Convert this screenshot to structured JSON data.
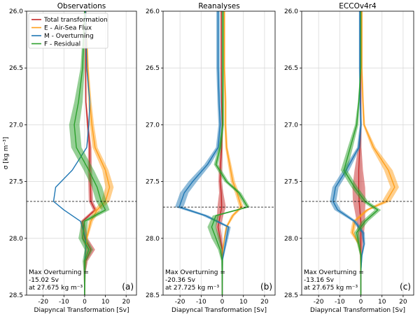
{
  "chart_data": {
    "type": "line",
    "xlabel": "Diapyncal Transformation [Sv]",
    "ylabel": "σ [kg m⁻³]",
    "xlim": [
      -28,
      25
    ],
    "ylim": [
      28.5,
      26.0
    ],
    "xticks": [
      -20,
      -10,
      0,
      10,
      20
    ],
    "yticks": [
      26.0,
      26.5,
      27.0,
      27.5,
      28.0,
      28.5
    ],
    "grid": true,
    "legend_position": "top-left (first panel)",
    "legend": [
      {
        "name": "Total transformation",
        "color": "#c62828"
      },
      {
        "name": "E - Air-Sea Flux",
        "color": "#ff9f1a"
      },
      {
        "name": "M - Overturning",
        "color": "#1f77b4"
      },
      {
        "name": "F - Residual",
        "color": "#2ca02c"
      }
    ],
    "panels": [
      {
        "title": "Observations",
        "letter": "(a)",
        "dashed_sigma": 27.675,
        "annotation": [
          "Max Overturning =",
          "-15.02 Sv",
          "at 27.675 kg m⁻³"
        ],
        "sigma": [
          26.0,
          26.5,
          26.8,
          27.0,
          27.2,
          27.4,
          27.55,
          27.675,
          27.75,
          27.85,
          28.0,
          28.1,
          28.2,
          28.3,
          28.5
        ],
        "series": [
          {
            "name": "Total transformation",
            "color": "#c62828",
            "values": [
              0.5,
              0.5,
              0.6,
              1.5,
              2.5,
              2.5,
              2.8,
              3.0,
              5.0,
              -1.0,
              0.0,
              3.0,
              0.5,
              0.0,
              0.0
            ],
            "band": [
              0.3,
              0.3,
              0.3,
              0.5,
              0.8,
              1.0,
              1.0,
              1.0,
              1.0,
              1.0,
              1.5,
              2.0,
              1.0,
              0.5,
              0.2
            ]
          },
          {
            "name": "E - Air-Sea Flux",
            "color": "#ff9f1a",
            "values": [
              0.5,
              1.5,
              2.5,
              3.5,
              5.0,
              10.0,
              12.0,
              10.0,
              6.0,
              3.0,
              1.0,
              0.5,
              0.2,
              0.0,
              0.0
            ],
            "band": [
              0.3,
              0.5,
              0.8,
              1.0,
              1.2,
              1.5,
              2.0,
              2.0,
              1.5,
              1.0,
              0.5,
              0.4,
              0.3,
              0.2,
              0.1
            ]
          },
          {
            "name": "M - Overturning",
            "color": "#1f77b4",
            "values": [
              0.5,
              1.0,
              2.5,
              2.0,
              1.0,
              -6.0,
              -14.0,
              -15.0,
              -10.0,
              -2.0,
              0.5,
              0.5,
              0.0,
              0.0,
              0.0
            ],
            "band": [
              0.0,
              0.0,
              0.0,
              0.0,
              0.0,
              0.0,
              0.0,
              0.0,
              0.0,
              0.0,
              0.0,
              0.0,
              0.0,
              0.0,
              0.0
            ]
          },
          {
            "name": "F - Residual",
            "color": "#2ca02c",
            "values": [
              0.0,
              -1.0,
              -3.0,
              -5.0,
              -4.0,
              2.0,
              6.0,
              8.0,
              10.0,
              0.0,
              -1.0,
              2.0,
              0.0,
              0.0,
              0.0
            ],
            "band": [
              0.3,
              1.0,
              2.0,
              2.5,
              2.5,
              2.5,
              2.5,
              2.5,
              2.0,
              1.5,
              2.0,
              2.0,
              1.0,
              0.5,
              0.2
            ]
          }
        ]
      },
      {
        "title": "Reanalyses",
        "letter": "(b)",
        "dashed_sigma": 27.725,
        "annotation": [
          "Max Overturning =",
          "-20.36 Sv",
          "at 27.725 kg m⁻³"
        ],
        "sigma": [
          26.0,
          26.5,
          26.8,
          27.0,
          27.2,
          27.35,
          27.5,
          27.6,
          27.725,
          27.8,
          27.9,
          28.0,
          28.1,
          28.2,
          28.5
        ],
        "series": [
          {
            "name": "Total transformation",
            "color": "#c62828",
            "values": [
              -0.5,
              -0.5,
              -0.3,
              0.0,
              -0.3,
              -0.8,
              -1.0,
              -0.5,
              -0.3,
              -1.0,
              -2.0,
              -1.0,
              0.0,
              0.0,
              0.0
            ],
            "band": [
              0.3,
              0.3,
              0.3,
              0.3,
              0.5,
              0.8,
              0.8,
              1.0,
              2.0,
              1.5,
              1.2,
              1.0,
              0.5,
              0.3,
              0.1
            ]
          },
          {
            "name": "E - Air-Sea Flux",
            "color": "#ff9f1a",
            "values": [
              1.0,
              1.0,
              1.5,
              1.5,
              2.0,
              3.5,
              5.0,
              7.0,
              9.0,
              5.0,
              2.0,
              1.0,
              0.3,
              0.0,
              0.0
            ],
            "band": [
              0.4,
              0.4,
              0.5,
              0.5,
              0.6,
              0.8,
              1.0,
              1.0,
              1.0,
              0.8,
              0.5,
              0.3,
              0.2,
              0.1,
              0.1
            ]
          },
          {
            "name": "M - Overturning",
            "color": "#1f77b4",
            "values": [
              -2.0,
              -2.0,
              -1.5,
              -1.0,
              -2.0,
              -7.0,
              -14.0,
              -18.0,
              -20.36,
              -8.0,
              3.0,
              2.0,
              1.0,
              0.0,
              0.0
            ],
            "band": [
              0.8,
              0.8,
              0.8,
              0.8,
              1.0,
              1.5,
              2.0,
              2.0,
              2.0,
              1.5,
              1.0,
              0.8,
              0.5,
              0.3,
              0.1
            ]
          },
          {
            "name": "F - Residual",
            "color": "#2ca02c",
            "values": [
              0.3,
              0.3,
              0.3,
              0.3,
              -1.0,
              -3.0,
              2.0,
              8.0,
              12.0,
              -3.0,
              -5.0,
              -3.0,
              -1.0,
              0.0,
              0.0
            ],
            "band": [
              0.5,
              0.5,
              0.5,
              0.5,
              0.8,
              1.0,
              1.0,
              1.0,
              1.0,
              1.5,
              2.0,
              2.0,
              1.0,
              0.5,
              0.1
            ]
          }
        ]
      },
      {
        "title": "ECCOv4r4",
        "letter": "(c)",
        "dashed_sigma": 27.675,
        "annotation": [
          "Max Overturning =",
          "-13.16 Sv",
          "at 27.675 kg m⁻³"
        ],
        "sigma": [
          26.0,
          26.5,
          26.8,
          27.0,
          27.2,
          27.4,
          27.55,
          27.675,
          27.75,
          27.85,
          27.95,
          28.05,
          28.15,
          28.3,
          28.5
        ],
        "series": [
          {
            "name": "Total transformation",
            "color": "#c62828",
            "values": [
              0.0,
              0.0,
              0.0,
              0.0,
              -0.5,
              -1.0,
              -1.0,
              -0.8,
              -0.5,
              0.0,
              0.0,
              0.0,
              0.0,
              0.0,
              0.0
            ],
            "band": [
              0.2,
              0.2,
              0.2,
              0.3,
              0.8,
              2.0,
              3.0,
              3.0,
              2.5,
              2.0,
              1.5,
              1.0,
              0.5,
              0.2,
              0.1
            ]
          },
          {
            "name": "E - Air-Sea Flux",
            "color": "#ff9f1a",
            "values": [
              0.5,
              0.5,
              1.0,
              1.5,
              6.0,
              13.0,
              16.0,
              12.0,
              3.0,
              -3.0,
              -4.0,
              -1.0,
              0.0,
              0.0,
              0.0
            ],
            "band": [
              0.3,
              0.3,
              0.4,
              0.5,
              1.0,
              2.0,
              2.0,
              2.0,
              1.0,
              1.0,
              1.0,
              0.5,
              0.3,
              0.2,
              0.1
            ]
          },
          {
            "name": "M - Overturning",
            "color": "#1f77b4",
            "values": [
              -0.5,
              -0.5,
              -0.3,
              0.0,
              -1.0,
              -7.0,
              -12.0,
              -13.16,
              -11.0,
              -3.0,
              1.0,
              1.5,
              0.5,
              0.0,
              0.0
            ],
            "band": [
              0.4,
              0.4,
              0.4,
              0.5,
              0.8,
              1.5,
              1.5,
              1.5,
              1.5,
              1.0,
              0.8,
              0.5,
              0.3,
              0.2,
              0.1
            ]
          },
          {
            "name": "F - Residual",
            "color": "#2ca02c",
            "values": [
              0.0,
              0.0,
              -1.0,
              -2.0,
              -5.0,
              -8.0,
              -3.0,
              2.0,
              8.0,
              2.0,
              -2.0,
              -1.0,
              0.0,
              0.0,
              0.0
            ],
            "band": [
              0.2,
              0.2,
              0.4,
              0.8,
              1.2,
              1.5,
              1.5,
              1.5,
              1.5,
              1.5,
              1.2,
              0.8,
              0.4,
              0.2,
              0.1
            ]
          }
        ]
      }
    ]
  }
}
